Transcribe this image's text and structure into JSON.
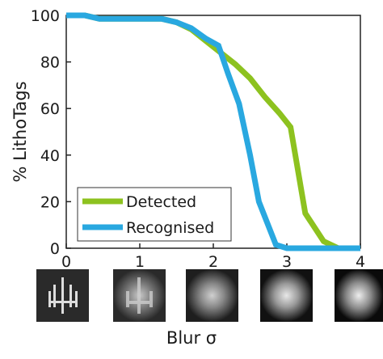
{
  "chart_data": {
    "type": "line",
    "x_label": "Blur σ",
    "y_label": "% LithoTags",
    "xlim": [
      0,
      4
    ],
    "xticks": [
      0,
      1,
      2,
      3,
      4
    ],
    "ylim": [
      0,
      100
    ],
    "yticks": [
      0,
      20,
      40,
      60,
      80,
      100
    ],
    "grid": false,
    "legend_position": "lower left",
    "series": [
      {
        "name": "Detected",
        "color": "#8dc21f",
        "x": [
          0,
          0.25,
          0.45,
          1.0,
          1.3,
          1.5,
          1.7,
          1.9,
          2.1,
          2.3,
          2.5,
          2.7,
          2.9,
          3.05,
          3.25,
          3.5,
          3.7,
          4
        ],
        "values": [
          100,
          100,
          98.5,
          98.5,
          98.5,
          97,
          94,
          89,
          84,
          79,
          73,
          65,
          58,
          52,
          15,
          3,
          0,
          0
        ]
      },
      {
        "name": "Recognised",
        "color": "#29a8e0",
        "x": [
          0,
          0.25,
          0.45,
          1.3,
          1.5,
          1.7,
          1.9,
          2.07,
          2.2,
          2.35,
          2.5,
          2.62,
          2.85,
          3.0,
          4
        ],
        "values": [
          100,
          100,
          98.5,
          98.5,
          97,
          94.5,
          90,
          87,
          75,
          62,
          40,
          20,
          1.5,
          0,
          0
        ]
      }
    ]
  }
}
